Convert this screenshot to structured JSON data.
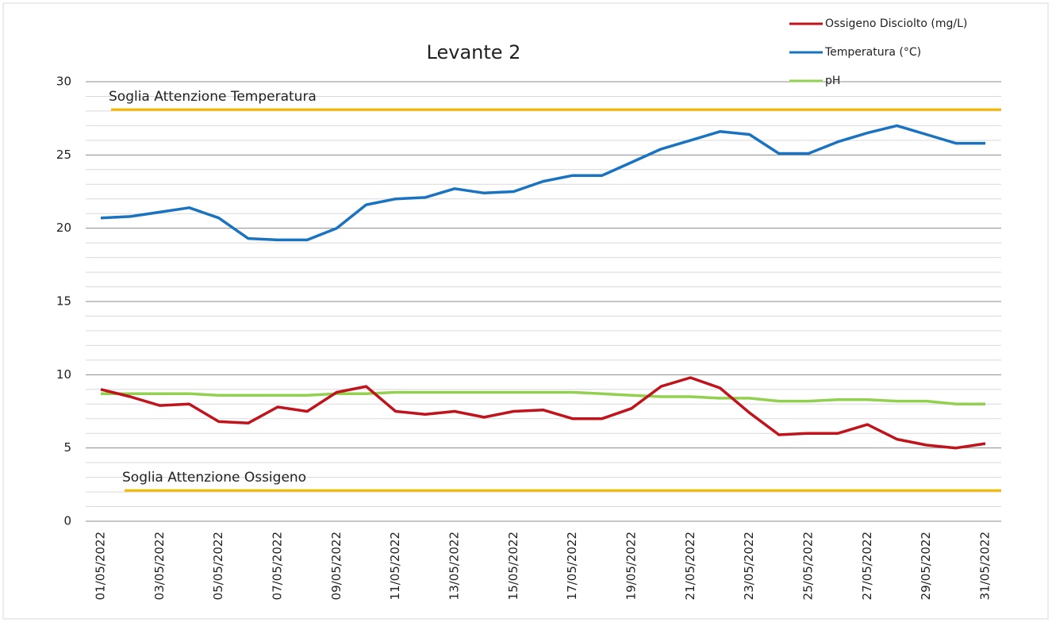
{
  "chart_data": {
    "type": "line",
    "title": "Levante 2",
    "categories": [
      "01/05/2022",
      null,
      "03/05/2022",
      null,
      "05/05/2022",
      null,
      "07/05/2022",
      null,
      "09/05/2022",
      null,
      "11/05/2022",
      null,
      "13/05/2022",
      null,
      "15/05/2022",
      null,
      "17/05/2022",
      null,
      "19/05/2022",
      null,
      "21/05/2022",
      null,
      "23/05/2022",
      null,
      "25/05/2022",
      null,
      "27/05/2022",
      null,
      "29/05/2022",
      null,
      "31/05/2022"
    ],
    "series": [
      {
        "name": "Ossigeno Disciolto (mg/L)",
        "color": "#c0141c",
        "values": [
          9.0,
          8.5,
          7.9,
          8.0,
          6.8,
          6.7,
          7.8,
          7.5,
          8.8,
          9.2,
          7.5,
          7.3,
          7.5,
          7.1,
          7.5,
          7.6,
          7.0,
          7.0,
          7.7,
          9.2,
          9.8,
          9.1,
          7.4,
          5.9,
          6.0,
          6.0,
          6.6,
          5.6,
          5.2,
          5.0,
          5.3
        ]
      },
      {
        "name": "Temperatura (°C)",
        "color": "#1a73c0",
        "values": [
          20.7,
          20.8,
          21.1,
          21.4,
          20.7,
          19.3,
          19.2,
          19.2,
          20.0,
          21.6,
          22.0,
          22.1,
          22.7,
          22.4,
          22.5,
          23.2,
          23.6,
          23.6,
          24.5,
          25.4,
          26.0,
          26.6,
          26.4,
          25.1,
          25.1,
          25.9,
          26.5,
          27.0,
          26.4,
          25.8,
          25.8
        ]
      },
      {
        "name": "pH",
        "color": "#92d050",
        "values": [
          8.7,
          8.7,
          8.7,
          8.7,
          8.6,
          8.6,
          8.6,
          8.6,
          8.7,
          8.7,
          8.8,
          8.8,
          8.8,
          8.8,
          8.8,
          8.8,
          8.8,
          8.7,
          8.6,
          8.5,
          8.5,
          8.4,
          8.4,
          8.2,
          8.2,
          8.3,
          8.3,
          8.2,
          8.2,
          8.0,
          8.0
        ]
      }
    ],
    "thresholds": [
      {
        "label": "Soglia Attenzione Temperatura",
        "value": 28.1,
        "color": "#f5b800",
        "text_color": "#f09a50"
      },
      {
        "label": "Soglia Attenzione Ossigeno",
        "value": 2.1,
        "color": "#f5b800",
        "text_color": "#f09a50"
      }
    ],
    "ylim": [
      0,
      30
    ],
    "yticks": [
      0,
      5,
      10,
      15,
      20,
      25,
      30
    ],
    "minor_yticks": [
      1,
      2,
      3,
      4,
      6,
      7,
      8,
      9,
      11,
      12,
      13,
      14,
      16,
      17,
      18,
      19,
      21,
      22,
      23,
      24,
      26,
      27,
      28,
      29
    ],
    "grid": true,
    "legend": "top-right"
  }
}
